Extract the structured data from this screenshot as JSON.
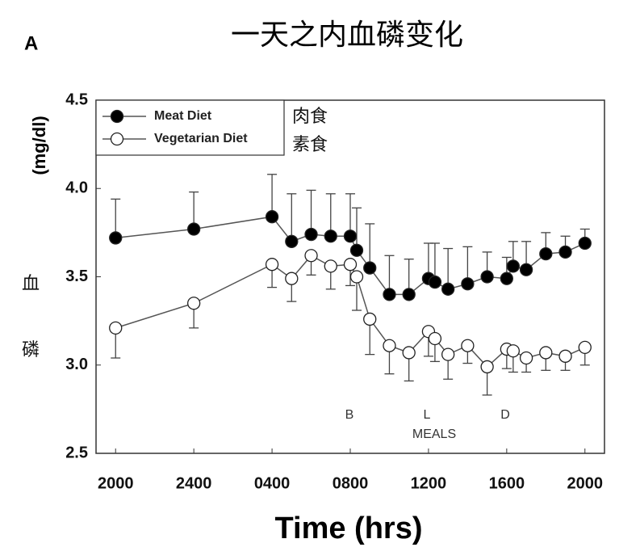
{
  "chart_data": {
    "type": "line",
    "panel_label": "A",
    "title": "一天之内血磷变化",
    "ylabel": "(mg/dl)",
    "ylabel_cn": [
      "血",
      "磷"
    ],
    "xlabel": "Time (hrs)",
    "legend_cn": [
      "肉食",
      "素食"
    ],
    "annotations": [
      "B",
      "L",
      "D",
      "MEALS"
    ],
    "x": [
      0,
      4,
      8,
      9,
      10,
      11,
      12,
      12.33,
      13,
      14,
      15,
      16,
      16.33,
      17,
      18,
      19,
      20,
      20.33,
      21,
      22,
      23,
      24
    ],
    "series": [
      {
        "name": "Meat Diet",
        "color": "#000000",
        "error_side": "upper",
        "values": [
          3.72,
          3.77,
          3.84,
          3.7,
          3.74,
          3.73,
          3.73,
          3.65,
          3.55,
          3.4,
          3.4,
          3.49,
          3.47,
          3.43,
          3.46,
          3.5,
          3.49,
          3.56,
          3.54,
          3.63,
          3.64,
          3.69
        ],
        "errors": [
          0.22,
          0.21,
          0.24,
          0.27,
          0.25,
          0.24,
          0.24,
          0.24,
          0.25,
          0.22,
          0.2,
          0.2,
          0.22,
          0.23,
          0.21,
          0.14,
          0.12,
          0.14,
          0.16,
          0.12,
          0.09,
          0.08
        ]
      },
      {
        "name": "Vegetarian Diet",
        "color": "#ffffff",
        "error_side": "lower",
        "values": [
          3.21,
          3.35,
          3.57,
          3.49,
          3.62,
          3.56,
          3.57,
          3.5,
          3.26,
          3.11,
          3.07,
          3.19,
          3.15,
          3.06,
          3.11,
          2.99,
          3.09,
          3.08,
          3.04,
          3.07,
          3.05,
          3.1
        ],
        "errors": [
          0.17,
          0.14,
          0.13,
          0.13,
          0.11,
          0.13,
          0.12,
          0.19,
          0.2,
          0.16,
          0.16,
          0.14,
          0.13,
          0.14,
          0.1,
          0.16,
          0.11,
          0.12,
          0.08,
          0.1,
          0.08,
          0.1
        ]
      }
    ],
    "xlim": [
      -1,
      25
    ],
    "xticks": [
      {
        "value": 0,
        "label": "2000"
      },
      {
        "value": 4,
        "label": "2400"
      },
      {
        "value": 8,
        "label": "0400"
      },
      {
        "value": 12,
        "label": "0800"
      },
      {
        "value": 16,
        "label": "1200"
      },
      {
        "value": 20,
        "label": "1600"
      },
      {
        "value": 24,
        "label": "2000"
      }
    ],
    "ylim": [
      2.5,
      4.5
    ],
    "yticks": [
      2.5,
      {
        "value": 3,
        "label": "3.0"
      },
      3.5,
      {
        "value": 4,
        "label": "4.0"
      },
      4.5
    ],
    "line_color": "#555555",
    "legend": "upper left"
  }
}
